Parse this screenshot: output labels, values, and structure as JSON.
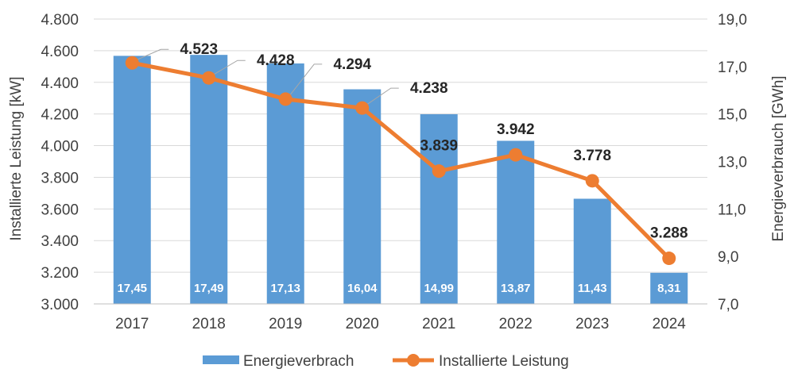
{
  "chart_data": {
    "type": "bar+line",
    "categories": [
      "2017",
      "2018",
      "2019",
      "2020",
      "2021",
      "2022",
      "2023",
      "2024"
    ],
    "series": [
      {
        "name": "Energieverbrach",
        "type": "bar",
        "axis": "right",
        "values": [
          17.45,
          17.49,
          17.13,
          16.04,
          14.99,
          13.87,
          11.43,
          8.31
        ],
        "labels": [
          "17,45",
          "17,49",
          "17,13",
          "16,04",
          "14,99",
          "13,87",
          "11,43",
          "8,31"
        ],
        "color": "#5b9bd5"
      },
      {
        "name": "Installierte Leistung",
        "type": "line",
        "axis": "left",
        "values": [
          4523,
          4428,
          4294,
          4238,
          3839,
          3942,
          3778,
          3288
        ],
        "labels": [
          "4.523",
          "4.428",
          "4.294",
          "4.238",
          "3.839",
          "3.942",
          "3.778",
          "3.288"
        ],
        "color": "#ed7d31"
      }
    ],
    "ylabel_left": "Installierte Leistung [kW]",
    "ylabel_right": "Energieverbrauch [GWh]",
    "ylim_left": [
      3000,
      4800
    ],
    "ylim_right": [
      7.0,
      19.0
    ],
    "yticks_left": [
      "3.000",
      "3.200",
      "3.400",
      "3.600",
      "3.800",
      "4.000",
      "4.200",
      "4.400",
      "4.600",
      "4.800"
    ],
    "yticks_right": [
      "7,0",
      "9,0",
      "11,0",
      "13,0",
      "15,0",
      "17,0",
      "19,0"
    ],
    "grid": true,
    "legend_position": "bottom"
  }
}
